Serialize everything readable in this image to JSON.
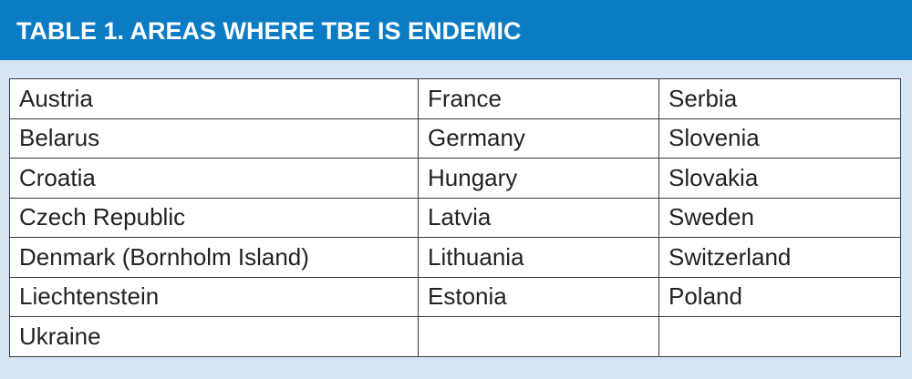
{
  "header": {
    "title": "TABLE 1. AREAS WHERE TBE IS ENDEMIC"
  },
  "table": {
    "rows": [
      [
        "Austria",
        "France",
        "Serbia"
      ],
      [
        "Belarus",
        "Germany",
        "Slovenia"
      ],
      [
        "Croatia",
        "Hungary",
        "Slovakia"
      ],
      [
        "Czech Republic",
        "Latvia",
        "Sweden"
      ],
      [
        "Denmark (Bornholm Island)",
        "Lithuania",
        "Switzerland"
      ],
      [
        "Liechtenstein",
        "Estonia",
        "Poland"
      ],
      [
        "Ukraine"
      ]
    ]
  }
}
